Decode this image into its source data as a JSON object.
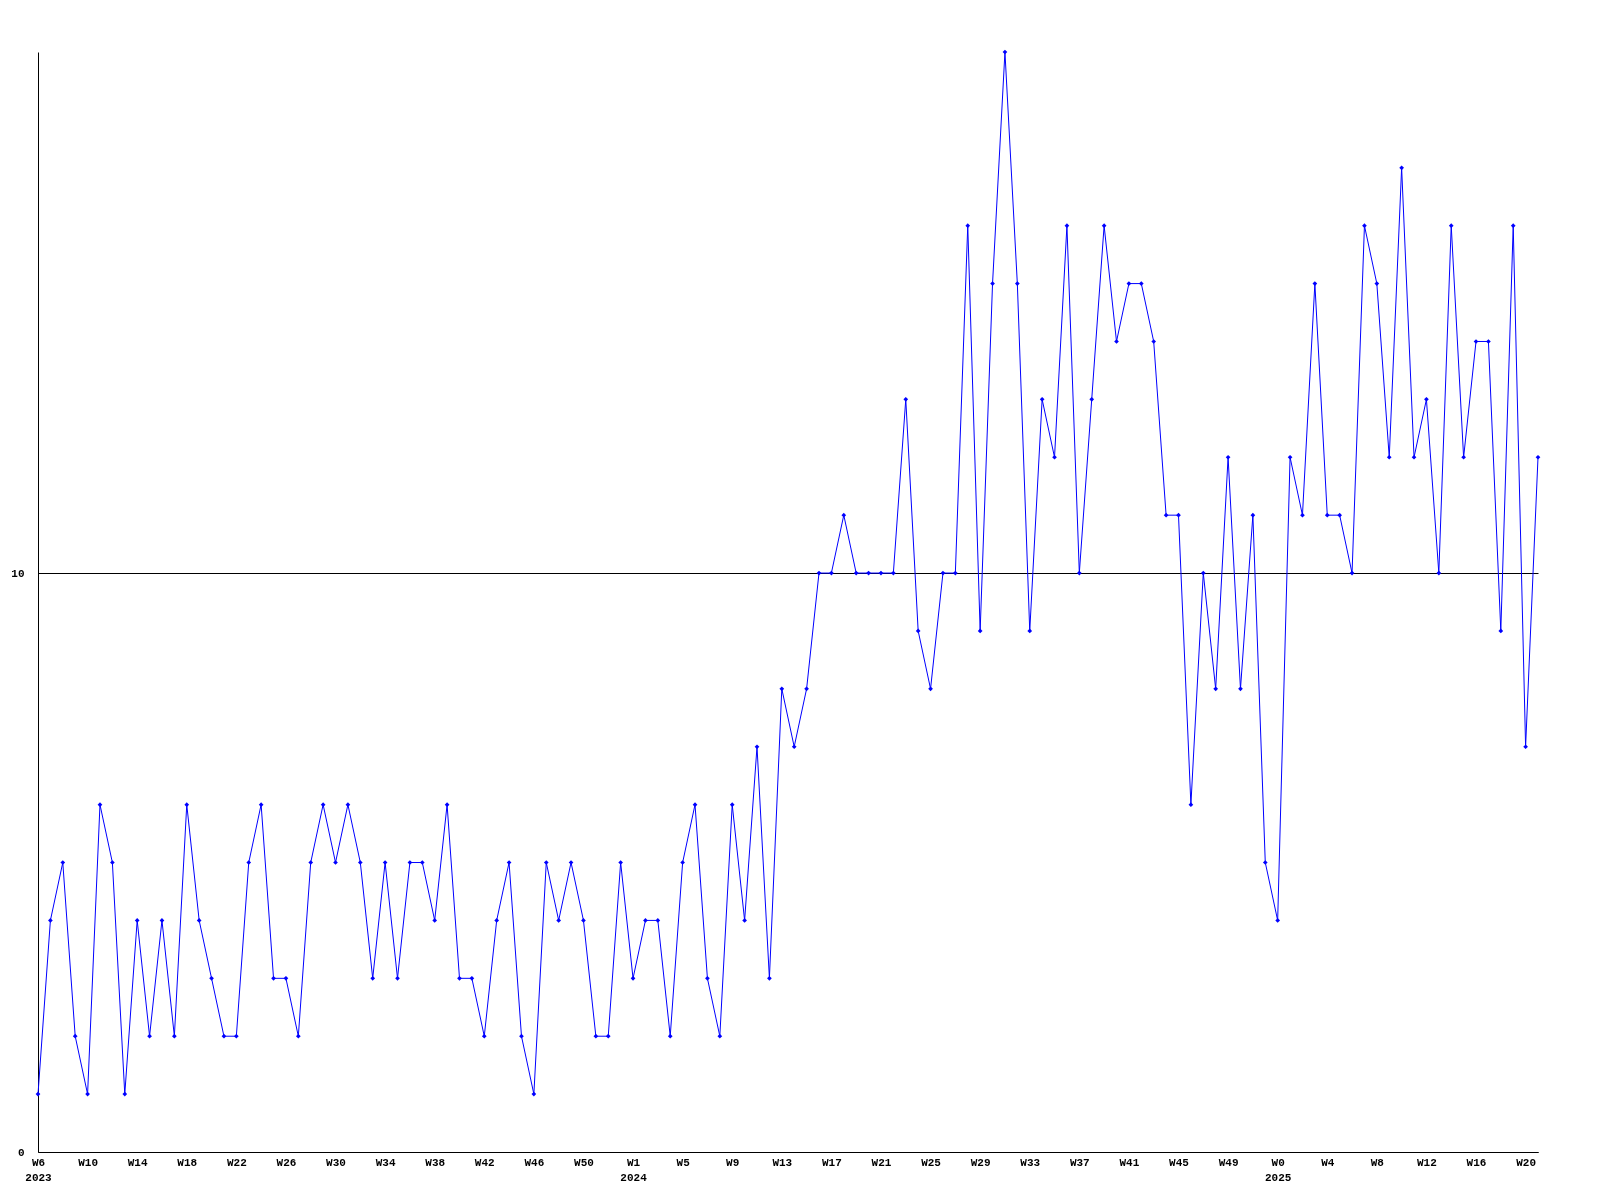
{
  "chart_data": {
    "type": "line",
    "categories": [
      "W6\n2023",
      null,
      null,
      null,
      "W10",
      null,
      null,
      null,
      "W14",
      null,
      null,
      null,
      "W18",
      null,
      null,
      null,
      "W22",
      null,
      null,
      null,
      "W26",
      null,
      null,
      null,
      "W30",
      null,
      null,
      null,
      "W34",
      null,
      null,
      null,
      "W38",
      null,
      null,
      null,
      "W42",
      null,
      null,
      null,
      "W46",
      null,
      null,
      null,
      "W50",
      null,
      null,
      null,
      "W1\n2024",
      null,
      null,
      null,
      "W5",
      null,
      null,
      null,
      "W9",
      null,
      null,
      null,
      "W13",
      null,
      null,
      null,
      "W17",
      null,
      null,
      null,
      "W21",
      null,
      null,
      null,
      "W25",
      null,
      null,
      null,
      "W29",
      null,
      null,
      null,
      "W33",
      null,
      null,
      null,
      "W37",
      null,
      null,
      null,
      "W41",
      null,
      null,
      null,
      "W45",
      null,
      null,
      null,
      "W49",
      null,
      null,
      null,
      "W0\n2025",
      null,
      null,
      null,
      "W4",
      null,
      null,
      null,
      "W8",
      null,
      null,
      null,
      "W12",
      null,
      null,
      null,
      "W16",
      null,
      null,
      null,
      "W20",
      null
    ],
    "series": [
      {
        "color": "#0000ff",
        "values": [
          1,
          4,
          5,
          2,
          1,
          6,
          5,
          1,
          4,
          2,
          4,
          2,
          6,
          4,
          3,
          2,
          2,
          5,
          6,
          3,
          3,
          2,
          5,
          6,
          5,
          6,
          5,
          3,
          5,
          3,
          5,
          5,
          4,
          6,
          3,
          3,
          2,
          4,
          5,
          2,
          1,
          5,
          4,
          5,
          4,
          2,
          2,
          5,
          3,
          4,
          4,
          2,
          5,
          6,
          3,
          2,
          6,
          4,
          7,
          3,
          8,
          7,
          8,
          10,
          10,
          11,
          10,
          10,
          10,
          10,
          13,
          9,
          8,
          10,
          10,
          16,
          9,
          15,
          19,
          15,
          9,
          13,
          12,
          16,
          10,
          13,
          16,
          14,
          15,
          15,
          14,
          11,
          11,
          6,
          10,
          8,
          12,
          8,
          11,
          5,
          4,
          12,
          11,
          15,
          11,
          11,
          10,
          16,
          15,
          12,
          17,
          12,
          13,
          10,
          16,
          12,
          14,
          14,
          9,
          16,
          7,
          12
        ]
      }
    ],
    "ylim": [
      0,
      19
    ],
    "yticks": [
      0,
      10
    ],
    "grid": "y",
    "marker": "diamond",
    "line_style": "solid"
  }
}
